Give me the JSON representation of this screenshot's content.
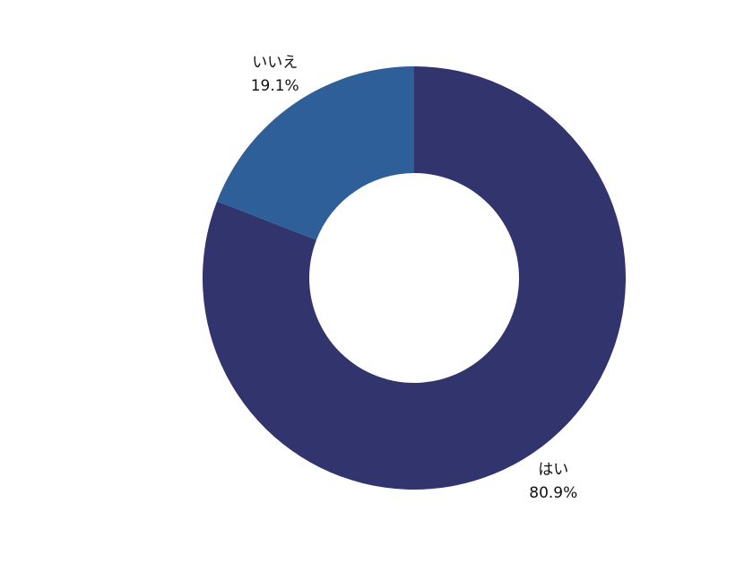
{
  "chart_data": {
    "type": "donut",
    "categories": [
      "はい",
      "いいえ"
    ],
    "values": [
      80.9,
      19.1
    ],
    "value_labels": [
      "80.9%",
      "19.1%"
    ],
    "colors": [
      "#31346d",
      "#2f5f98"
    ]
  }
}
